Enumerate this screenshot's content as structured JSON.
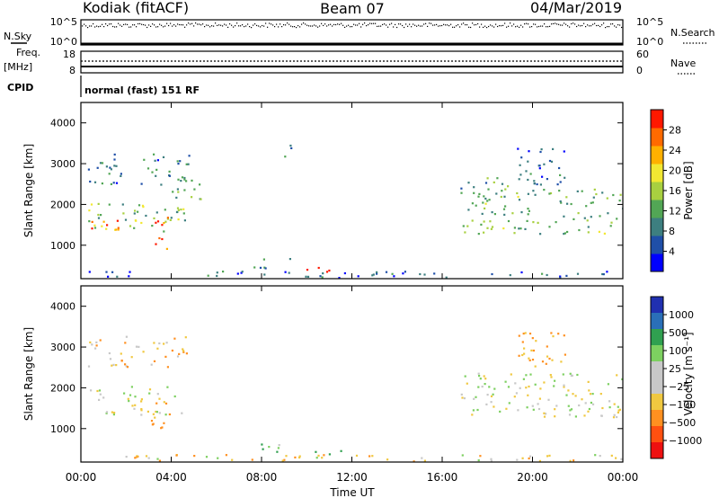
{
  "header": {
    "station": "Kodiak (fitACF)",
    "beam": "Beam 07",
    "date": "04/Mar/2019"
  },
  "status_panels": {
    "nsky": {
      "label": "N.Sky",
      "ticks": [
        "10^5",
        "10^0"
      ]
    },
    "nsearch": {
      "label": "N.Search",
      "ticks": [
        "10^5",
        "10^0"
      ]
    },
    "freq": {
      "label_line1": "Freq.",
      "label_line2": "[MHz]",
      "ticks": [
        "18",
        "8"
      ]
    },
    "nave": {
      "label": "Nave",
      "ticks": [
        "60",
        "0"
      ]
    },
    "cpid": {
      "label": "CPID",
      "value": "normal (fast) 151 RF"
    }
  },
  "chart_data": [
    {
      "type": "heatmap",
      "name": "power",
      "ylabel": "Slant Range [km]",
      "yticks": [
        "4000",
        "3000",
        "2000",
        "1000"
      ],
      "ytick_values": [
        4000,
        3000,
        2000,
        1000
      ],
      "ylim": [
        180,
        4500
      ],
      "xlim_hours": [
        0,
        24
      ],
      "colorbar": {
        "label": "Power [dB]",
        "ticks": [
          "28",
          "24",
          "20",
          "16",
          "12",
          "8",
          "4"
        ],
        "tick_values": [
          28,
          24,
          20,
          16,
          12,
          8,
          4
        ],
        "range": [
          0,
          30
        ],
        "colors": [
          "#0000ff",
          "#1f4fa8",
          "#3d7f80",
          "#52a655",
          "#a8d040",
          "#f2e832",
          "#ffb000",
          "#ff6a00",
          "#ff1800"
        ]
      },
      "regions": [
        {
          "hours": [
            0.3,
            4.6
          ],
          "range_km": [
            1350,
            2050
          ],
          "value": 14,
          "note": "main echo band"
        },
        {
          "hours": [
            0.3,
            2.5
          ],
          "range_km": [
            1400,
            1650
          ],
          "value": 24
        },
        {
          "hours": [
            3.1,
            3.9
          ],
          "range_km": [
            800,
            1700
          ],
          "value": 26
        },
        {
          "hours": [
            0.3,
            4.8
          ],
          "range_km": [
            2500,
            3300
          ],
          "value": 8
        },
        {
          "hours": [
            4.0,
            5.3
          ],
          "range_km": [
            1800,
            2700
          ],
          "value": 12
        },
        {
          "hours": [
            0.3,
            24
          ],
          "range_km": [
            220,
            380
          ],
          "value": 6
        },
        {
          "hours": [
            9.8,
            12.2
          ],
          "range_km": [
            350,
            480
          ],
          "value": 28
        },
        {
          "hours": [
            7.5,
            9.3
          ],
          "range_km": [
            450,
            700
          ],
          "value": 8
        },
        {
          "hours": [
            9.0,
            9.4
          ],
          "range_km": [
            3100,
            3500
          ],
          "value": 6
        },
        {
          "hours": [
            16.8,
            24
          ],
          "range_km": [
            1300,
            2400
          ],
          "value": 12
        },
        {
          "hours": [
            16.8,
            19.0
          ],
          "range_km": [
            2200,
            2700
          ],
          "value": 10
        },
        {
          "hours": [
            19.2,
            21.5
          ],
          "range_km": [
            2500,
            3400
          ],
          "value": 6
        }
      ]
    },
    {
      "type": "heatmap",
      "name": "velocity",
      "ylabel": "Slant Range [km]",
      "yticks": [
        "4000",
        "3000",
        "2000",
        "1000"
      ],
      "ytick_values": [
        4000,
        3000,
        2000,
        1000
      ],
      "ylim": [
        180,
        4500
      ],
      "xlim_hours": [
        0,
        24
      ],
      "xticks": [
        "00:00",
        "04:00",
        "08:00",
        "12:00",
        "16:00",
        "20:00",
        "00:00"
      ],
      "xtick_values": [
        0,
        4,
        8,
        12,
        16,
        20,
        24
      ],
      "xlabel": "Time UT",
      "colorbar": {
        "label": "Velocity [m s⁻¹]",
        "ticks": [
          "1000",
          "500",
          "100",
          "25",
          "−25",
          "−100",
          "−500",
          "−1000"
        ],
        "colors": [
          "#2030b0",
          "#2a6fb8",
          "#30a050",
          "#7dd060",
          "#c8c8c8",
          "#c8c8c8",
          "#f0c840",
          "#ff9020",
          "#ff5010",
          "#ee1010"
        ]
      },
      "regions": [
        {
          "hours": [
            0.3,
            4.6
          ],
          "range_km": [
            1350,
            2050
          ],
          "value": 0,
          "note": "ground scatter band"
        },
        {
          "hours": [
            3.1,
            3.9
          ],
          "range_km": [
            800,
            1700
          ],
          "value": -150
        },
        {
          "hours": [
            0.3,
            4.8
          ],
          "range_km": [
            2500,
            3300
          ],
          "value": -80
        },
        {
          "hours": [
            0.3,
            24
          ],
          "range_km": [
            220,
            380
          ],
          "value": -60
        },
        {
          "hours": [
            9.8,
            12.2
          ],
          "range_km": [
            350,
            480
          ],
          "value": 110
        },
        {
          "hours": [
            7.5,
            9.3
          ],
          "range_km": [
            450,
            700
          ],
          "value": 60
        },
        {
          "hours": [
            16.8,
            24
          ],
          "range_km": [
            1300,
            2400
          ],
          "value": 0
        },
        {
          "hours": [
            19.2,
            21.5
          ],
          "range_km": [
            2500,
            3400
          ],
          "value": -120
        }
      ]
    }
  ]
}
